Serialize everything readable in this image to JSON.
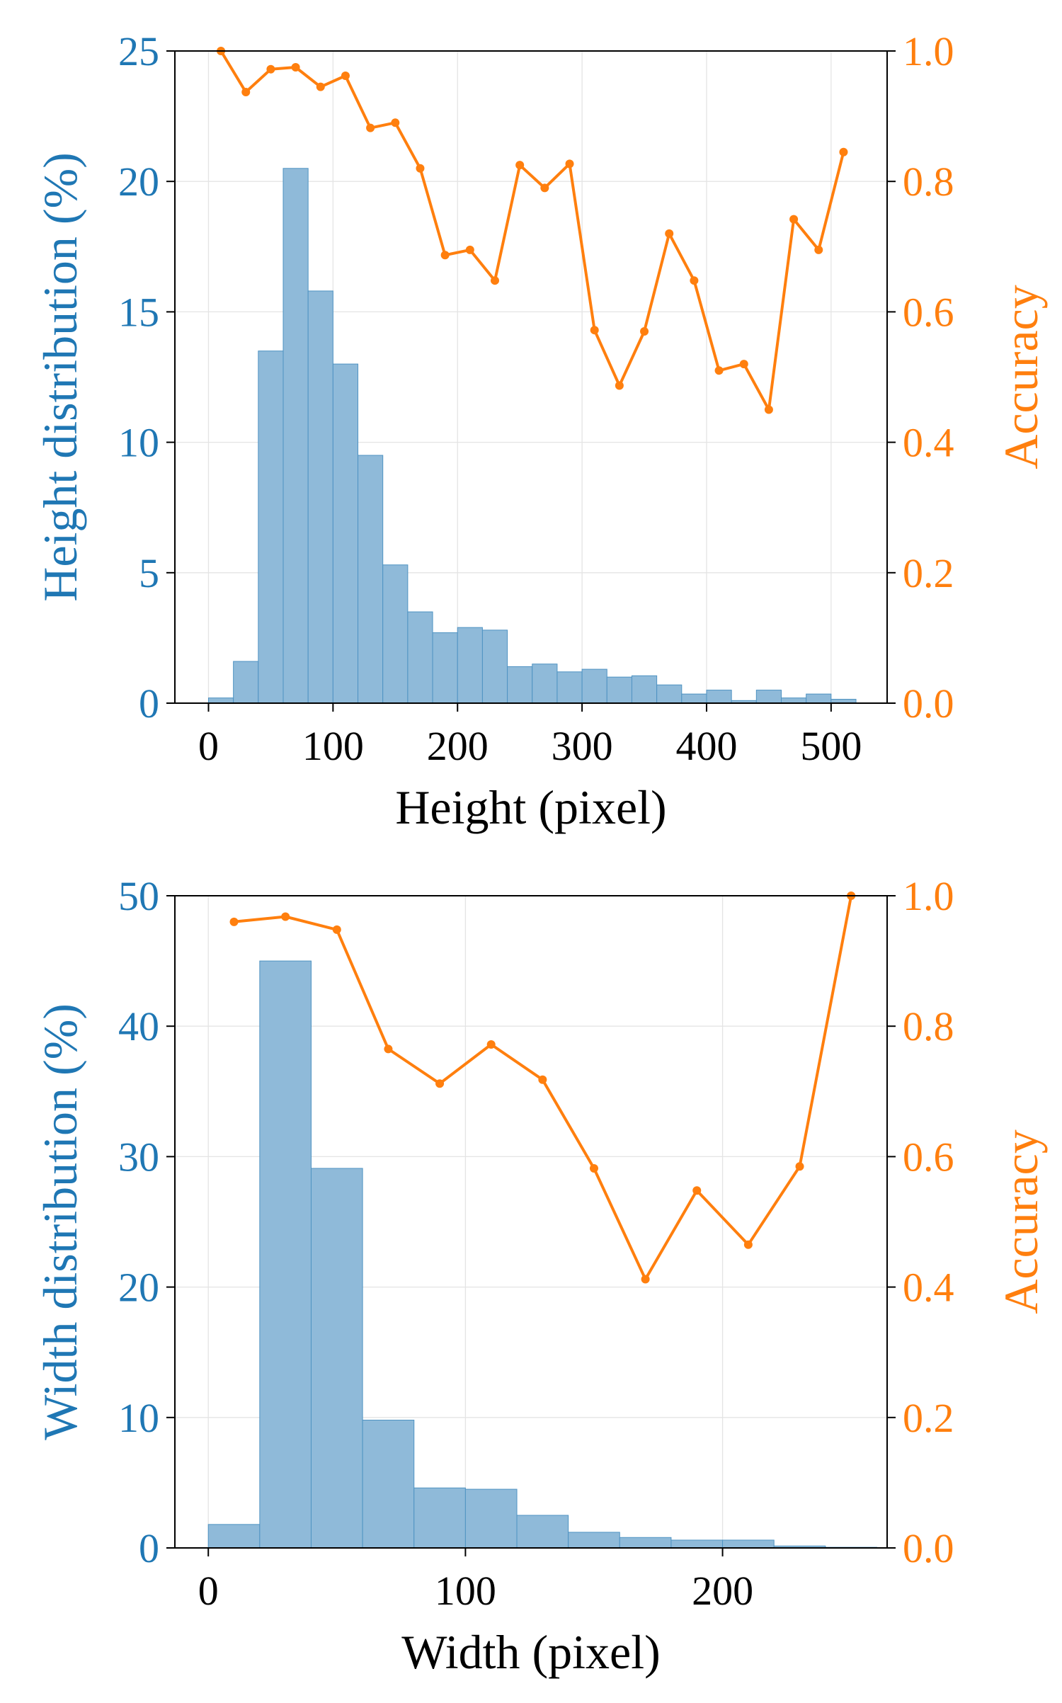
{
  "colors": {
    "bar_fill": "#8fbad9",
    "bar_edge": "#4f93c2",
    "left_axis": "#1f77b4",
    "right_axis": "#ff7f0e",
    "line": "#ff7f0e",
    "grid": "#e4e4e4",
    "black": "#000000"
  },
  "chart_data": [
    {
      "type": "bar",
      "xlabel": "Height (pixel)",
      "ylabel": "Height distribution (%)",
      "y2label": "Accuracy",
      "xlim": [
        -27,
        545
      ],
      "ylim": [
        0,
        25
      ],
      "y2lim": [
        0,
        1.0
      ],
      "xticks": [
        0,
        100,
        200,
        300,
        400,
        500
      ],
      "yticks": [
        0,
        5,
        10,
        15,
        20,
        25
      ],
      "y2ticks": [
        0.0,
        0.2,
        0.4,
        0.6,
        0.8,
        1.0
      ],
      "grid": true,
      "bin_width": 20,
      "bins": [
        {
          "x0": 0,
          "x1": 20,
          "value": 0.2
        },
        {
          "x0": 20,
          "x1": 40,
          "value": 1.6
        },
        {
          "x0": 40,
          "x1": 60,
          "value": 13.5
        },
        {
          "x0": 60,
          "x1": 80,
          "value": 20.5
        },
        {
          "x0": 80,
          "x1": 100,
          "value": 15.8
        },
        {
          "x0": 100,
          "x1": 120,
          "value": 13.0
        },
        {
          "x0": 120,
          "x1": 140,
          "value": 9.5
        },
        {
          "x0": 140,
          "x1": 160,
          "value": 5.3
        },
        {
          "x0": 160,
          "x1": 180,
          "value": 3.5
        },
        {
          "x0": 180,
          "x1": 200,
          "value": 2.7
        },
        {
          "x0": 200,
          "x1": 220,
          "value": 2.9
        },
        {
          "x0": 220,
          "x1": 240,
          "value": 2.8
        },
        {
          "x0": 240,
          "x1": 260,
          "value": 1.4
        },
        {
          "x0": 260,
          "x1": 280,
          "value": 1.5
        },
        {
          "x0": 280,
          "x1": 300,
          "value": 1.2
        },
        {
          "x0": 300,
          "x1": 320,
          "value": 1.3
        },
        {
          "x0": 320,
          "x1": 340,
          "value": 1.0
        },
        {
          "x0": 340,
          "x1": 360,
          "value": 1.05
        },
        {
          "x0": 360,
          "x1": 380,
          "value": 0.7
        },
        {
          "x0": 380,
          "x1": 400,
          "value": 0.35
        },
        {
          "x0": 400,
          "x1": 420,
          "value": 0.5
        },
        {
          "x0": 420,
          "x1": 440,
          "value": 0.1
        },
        {
          "x0": 440,
          "x1": 460,
          "value": 0.5
        },
        {
          "x0": 460,
          "x1": 480,
          "value": 0.2
        },
        {
          "x0": 480,
          "x1": 500,
          "value": 0.35
        },
        {
          "x0": 500,
          "x1": 520,
          "value": 0.15
        }
      ],
      "accuracy": [
        {
          "x": 10,
          "y": 1.0
        },
        {
          "x": 30,
          "y": 0.937
        },
        {
          "x": 50,
          "y": 0.972
        },
        {
          "x": 70,
          "y": 0.975
        },
        {
          "x": 90,
          "y": 0.945
        },
        {
          "x": 110,
          "y": 0.962
        },
        {
          "x": 130,
          "y": 0.882
        },
        {
          "x": 150,
          "y": 0.89
        },
        {
          "x": 170,
          "y": 0.82
        },
        {
          "x": 190,
          "y": 0.687
        },
        {
          "x": 210,
          "y": 0.695
        },
        {
          "x": 230,
          "y": 0.648
        },
        {
          "x": 250,
          "y": 0.825
        },
        {
          "x": 270,
          "y": 0.79
        },
        {
          "x": 290,
          "y": 0.827
        },
        {
          "x": 310,
          "y": 0.572
        },
        {
          "x": 330,
          "y": 0.487
        },
        {
          "x": 350,
          "y": 0.57
        },
        {
          "x": 370,
          "y": 0.72
        },
        {
          "x": 390,
          "y": 0.648
        },
        {
          "x": 410,
          "y": 0.51
        },
        {
          "x": 430,
          "y": 0.52
        },
        {
          "x": 450,
          "y": 0.45
        },
        {
          "x": 470,
          "y": 0.742
        },
        {
          "x": 490,
          "y": 0.695
        },
        {
          "x": 510,
          "y": 0.845
        }
      ]
    },
    {
      "type": "bar",
      "xlabel": "Width (pixel)",
      "ylabel": "Width distribution (%)",
      "y2label": "Accuracy",
      "xlim": [
        -13,
        264
      ],
      "ylim": [
        0,
        50
      ],
      "y2lim": [
        0,
        1.0
      ],
      "xticks": [
        0,
        100,
        200
      ],
      "yticks": [
        0,
        10,
        20,
        30,
        40,
        50
      ],
      "y2ticks": [
        0.0,
        0.2,
        0.4,
        0.6,
        0.8,
        1.0
      ],
      "grid": true,
      "bin_width": 20,
      "bins": [
        {
          "x0": 0,
          "x1": 20,
          "value": 1.8
        },
        {
          "x0": 20,
          "x1": 40,
          "value": 45.0
        },
        {
          "x0": 40,
          "x1": 60,
          "value": 29.1
        },
        {
          "x0": 60,
          "x1": 80,
          "value": 9.8
        },
        {
          "x0": 80,
          "x1": 100,
          "value": 4.6
        },
        {
          "x0": 100,
          "x1": 120,
          "value": 4.5
        },
        {
          "x0": 120,
          "x1": 140,
          "value": 2.5
        },
        {
          "x0": 140,
          "x1": 160,
          "value": 1.2
        },
        {
          "x0": 160,
          "x1": 180,
          "value": 0.8
        },
        {
          "x0": 180,
          "x1": 200,
          "value": 0.6
        },
        {
          "x0": 200,
          "x1": 220,
          "value": 0.6
        },
        {
          "x0": 220,
          "x1": 240,
          "value": 0.15
        },
        {
          "x0": 240,
          "x1": 260,
          "value": 0.05
        }
      ],
      "accuracy": [
        {
          "x": 10,
          "y": 0.96
        },
        {
          "x": 30,
          "y": 0.968
        },
        {
          "x": 50,
          "y": 0.948
        },
        {
          "x": 70,
          "y": 0.765
        },
        {
          "x": 90,
          "y": 0.712
        },
        {
          "x": 110,
          "y": 0.772
        },
        {
          "x": 130,
          "y": 0.718
        },
        {
          "x": 150,
          "y": 0.582
        },
        {
          "x": 170,
          "y": 0.412
        },
        {
          "x": 190,
          "y": 0.548
        },
        {
          "x": 210,
          "y": 0.465
        },
        {
          "x": 230,
          "y": 0.585
        },
        {
          "x": 250,
          "y": 1.0
        }
      ]
    }
  ]
}
